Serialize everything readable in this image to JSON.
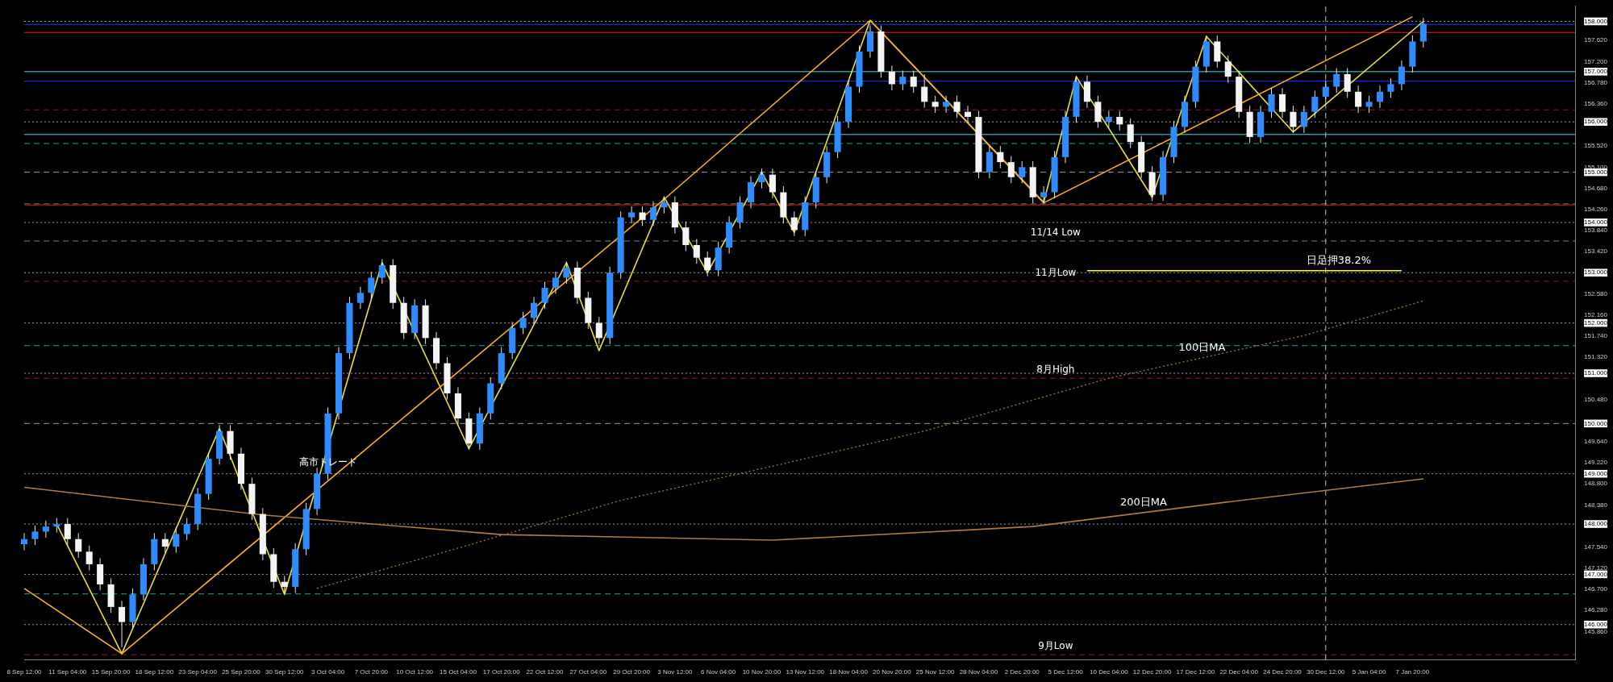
{
  "chart_data": {
    "type": "candlestick",
    "categories": [
      "8 Sep 12:00",
      null,
      null,
      null,
      "11 Sep 04:00",
      null,
      null,
      null,
      "15 Sep 20:00",
      null,
      null,
      null,
      "18 Sep 12:00",
      null,
      null,
      null,
      "23 Sep 04:00",
      null,
      null,
      null,
      "25 Sep 20:00",
      null,
      null,
      null,
      "30 Sep 12:00",
      null,
      null,
      null,
      "3 Oct 04:00",
      null,
      null,
      null,
      "7 Oct 20:00",
      null,
      null,
      null,
      "10 Oct 12:00",
      null,
      null,
      null,
      "15 Oct 04:00",
      null,
      null,
      null,
      "17 Oct 20:00",
      null,
      null,
      null,
      "22 Oct 12:00",
      null,
      null,
      null,
      "27 Oct 04:00",
      null,
      null,
      null,
      "29 Oct 20:00",
      null,
      null,
      null,
      "3 Nov 12:00",
      null,
      null,
      null,
      "6 Nov 04:00",
      null,
      null,
      null,
      "10 Nov 20:00",
      null,
      null,
      null,
      "13 Nov 12:00",
      null,
      null,
      null,
      "18 Nov 04:00",
      null,
      null,
      null,
      "20 Nov 20:00",
      null,
      null,
      null,
      "25 Nov 12:00",
      null,
      null,
      null,
      "28 Nov 04:00",
      null,
      null,
      null,
      "2 Dec 20:00",
      null,
      null,
      null,
      "5 Dec 12:00",
      null,
      null,
      null,
      "10 Dec 04:00",
      null,
      null,
      null,
      "12 Dec 20:00",
      null,
      null,
      null,
      "17 Dec 12:00",
      null,
      null,
      null,
      "22 Dec 04:00",
      null,
      null,
      null,
      "24 Dec 20:00",
      null,
      null,
      null,
      "30 Dec 12:00",
      null,
      null,
      null,
      "5 Jan 04:00",
      null,
      null,
      null,
      "7 Jan 20:00",
      null,
      null,
      null,
      null,
      null,
      null,
      null,
      null,
      null,
      null,
      null,
      null,
      null,
      null,
      null
    ],
    "ohlc": [
      [
        147.6,
        147.82,
        147.48,
        147.7
      ],
      [
        147.7,
        147.97,
        147.58,
        147.85
      ],
      [
        147.85,
        148.07,
        147.73,
        147.95
      ],
      [
        147.95,
        148.12,
        147.83,
        148.0
      ],
      [
        148.0,
        148.12,
        147.58,
        147.7
      ],
      [
        147.7,
        147.82,
        147.33,
        147.45
      ],
      [
        147.45,
        147.57,
        147.08,
        147.2
      ],
      [
        147.2,
        147.32,
        146.68,
        146.8
      ],
      [
        146.8,
        146.92,
        146.23,
        146.35
      ],
      [
        146.35,
        146.47,
        145.55,
        146.05
      ],
      [
        146.05,
        146.72,
        145.93,
        146.6
      ],
      [
        146.6,
        147.32,
        146.48,
        147.2
      ],
      [
        147.2,
        147.82,
        147.08,
        147.7
      ],
      [
        147.7,
        147.82,
        147.43,
        147.55
      ],
      [
        147.55,
        147.92,
        147.43,
        147.8
      ],
      [
        147.8,
        148.12,
        147.68,
        148.0
      ],
      [
        148.0,
        148.72,
        147.88,
        148.6
      ],
      [
        148.6,
        149.42,
        148.48,
        149.3
      ],
      [
        149.3,
        149.97,
        149.18,
        149.85
      ],
      [
        149.85,
        149.97,
        149.28,
        149.4
      ],
      [
        149.4,
        149.52,
        148.68,
        148.8
      ],
      [
        148.8,
        148.92,
        148.08,
        148.2
      ],
      [
        148.2,
        148.32,
        147.28,
        147.4
      ],
      [
        147.4,
        147.52,
        146.73,
        146.85
      ],
      [
        146.85,
        146.97,
        146.63,
        146.75
      ],
      [
        146.75,
        147.62,
        146.63,
        147.5
      ],
      [
        147.5,
        148.42,
        147.38,
        148.3
      ],
      [
        148.3,
        149.12,
        148.18,
        149.0
      ],
      [
        149.0,
        150.32,
        148.88,
        150.2
      ],
      [
        150.2,
        151.52,
        150.08,
        151.4
      ],
      [
        151.4,
        152.52,
        151.28,
        152.4
      ],
      [
        152.4,
        152.72,
        152.28,
        152.6
      ],
      [
        152.6,
        153.02,
        152.48,
        152.9
      ],
      [
        152.9,
        153.27,
        152.78,
        153.15
      ],
      [
        153.15,
        153.27,
        152.28,
        152.4
      ],
      [
        152.4,
        152.52,
        151.68,
        151.8
      ],
      [
        151.8,
        152.47,
        151.68,
        152.35
      ],
      [
        152.35,
        152.47,
        151.58,
        151.7
      ],
      [
        151.7,
        151.82,
        151.08,
        151.2
      ],
      [
        151.2,
        151.32,
        150.48,
        150.6
      ],
      [
        150.6,
        150.72,
        149.98,
        150.1
      ],
      [
        150.1,
        150.22,
        149.48,
        149.6
      ],
      [
        149.6,
        150.32,
        149.48,
        150.2
      ],
      [
        150.2,
        150.92,
        150.08,
        150.8
      ],
      [
        150.8,
        151.52,
        150.68,
        151.4
      ],
      [
        151.4,
        152.02,
        151.28,
        151.9
      ],
      [
        151.9,
        152.22,
        151.78,
        152.1
      ],
      [
        152.1,
        152.52,
        151.98,
        152.4
      ],
      [
        152.4,
        152.82,
        152.28,
        152.7
      ],
      [
        152.7,
        153.02,
        152.58,
        152.9
      ],
      [
        152.9,
        153.22,
        152.78,
        153.1
      ],
      [
        153.1,
        153.22,
        152.38,
        152.5
      ],
      [
        152.5,
        152.62,
        151.88,
        152.0
      ],
      [
        152.0,
        152.12,
        151.58,
        151.7
      ],
      [
        151.7,
        153.12,
        151.58,
        153.0
      ],
      [
        153.0,
        154.22,
        152.88,
        154.1
      ],
      [
        154.1,
        154.32,
        153.98,
        154.2
      ],
      [
        154.2,
        154.32,
        153.93,
        154.05
      ],
      [
        154.05,
        154.42,
        153.93,
        154.3
      ],
      [
        154.3,
        154.52,
        154.18,
        154.4
      ],
      [
        154.4,
        154.52,
        153.78,
        153.9
      ],
      [
        153.9,
        154.02,
        153.43,
        153.55
      ],
      [
        153.55,
        153.67,
        153.18,
        153.3
      ],
      [
        153.3,
        153.42,
        152.93,
        153.05
      ],
      [
        153.05,
        153.62,
        152.93,
        153.5
      ],
      [
        153.5,
        154.12,
        153.38,
        154.0
      ],
      [
        154.0,
        154.52,
        153.88,
        154.4
      ],
      [
        154.4,
        154.92,
        154.28,
        154.8
      ],
      [
        154.8,
        155.07,
        154.68,
        154.95
      ],
      [
        154.95,
        155.07,
        154.48,
        154.6
      ],
      [
        154.6,
        154.72,
        153.98,
        154.1
      ],
      [
        154.1,
        154.22,
        153.73,
        153.85
      ],
      [
        153.85,
        154.52,
        153.73,
        154.4
      ],
      [
        154.4,
        155.02,
        154.28,
        154.9
      ],
      [
        154.9,
        155.52,
        154.78,
        155.4
      ],
      [
        155.4,
        156.12,
        155.28,
        156.0
      ],
      [
        156.0,
        156.82,
        155.88,
        156.7
      ],
      [
        156.7,
        157.52,
        156.58,
        157.4
      ],
      [
        157.4,
        157.92,
        157.28,
        157.8
      ],
      [
        157.8,
        157.92,
        156.88,
        157.0
      ],
      [
        157.0,
        157.12,
        156.63,
        156.75
      ],
      [
        156.75,
        157.02,
        156.63,
        156.9
      ],
      [
        156.9,
        157.02,
        156.58,
        156.7
      ],
      [
        156.7,
        156.95,
        156.28,
        156.4
      ],
      [
        156.4,
        156.52,
        156.18,
        156.3
      ],
      [
        156.3,
        156.52,
        156.18,
        156.4
      ],
      [
        156.4,
        156.52,
        156.08,
        156.2
      ],
      [
        156.2,
        156.32,
        155.98,
        156.1
      ],
      [
        156.1,
        156.22,
        154.88,
        155.0
      ],
      [
        155.0,
        155.52,
        154.88,
        155.4
      ],
      [
        155.4,
        155.52,
        155.08,
        155.2
      ],
      [
        155.2,
        155.32,
        154.78,
        154.9
      ],
      [
        154.9,
        155.22,
        154.78,
        155.1
      ],
      [
        155.1,
        155.22,
        154.38,
        154.5
      ],
      [
        154.5,
        154.72,
        154.38,
        154.6
      ],
      [
        154.6,
        155.42,
        154.48,
        155.3
      ],
      [
        155.3,
        156.22,
        155.18,
        156.1
      ],
      [
        156.1,
        156.92,
        155.98,
        156.8
      ],
      [
        156.8,
        156.92,
        156.28,
        156.4
      ],
      [
        156.4,
        156.52,
        155.88,
        156.0
      ],
      [
        156.0,
        156.22,
        155.88,
        156.1
      ],
      [
        156.1,
        156.22,
        155.83,
        155.95
      ],
      [
        155.95,
        156.07,
        155.48,
        155.6
      ],
      [
        155.6,
        155.72,
        154.88,
        155.0
      ],
      [
        155.0,
        155.12,
        154.43,
        154.55
      ],
      [
        154.55,
        155.42,
        154.43,
        155.3
      ],
      [
        155.3,
        156.02,
        155.18,
        155.9
      ],
      [
        155.9,
        156.52,
        155.78,
        156.4
      ],
      [
        156.4,
        157.22,
        156.28,
        157.1
      ],
      [
        157.1,
        157.72,
        156.98,
        157.6
      ],
      [
        157.6,
        157.72,
        157.08,
        157.2
      ],
      [
        157.2,
        157.32,
        156.78,
        156.9
      ],
      [
        156.9,
        157.02,
        156.08,
        156.2
      ],
      [
        156.2,
        156.32,
        155.58,
        155.7
      ],
      [
        155.7,
        156.32,
        155.58,
        156.2
      ],
      [
        156.2,
        156.67,
        156.08,
        156.55
      ],
      [
        156.55,
        156.67,
        156.08,
        156.2
      ],
      [
        156.2,
        156.32,
        155.78,
        155.9
      ],
      [
        155.9,
        156.32,
        155.78,
        156.2
      ],
      [
        156.2,
        156.62,
        156.08,
        156.5
      ],
      [
        156.5,
        156.82,
        156.38,
        156.7
      ],
      [
        156.7,
        157.07,
        156.58,
        156.95
      ],
      [
        156.95,
        157.07,
        156.48,
        156.6
      ],
      [
        156.6,
        156.72,
        156.18,
        156.3
      ],
      [
        156.3,
        156.52,
        156.18,
        156.4
      ],
      [
        156.4,
        156.72,
        156.28,
        156.6
      ],
      [
        156.6,
        156.87,
        156.48,
        156.75
      ],
      [
        156.75,
        157.22,
        156.63,
        157.1
      ],
      [
        157.1,
        157.72,
        156.98,
        157.6
      ],
      [
        157.6,
        158.07,
        157.48,
        157.95
      ],
      null,
      null,
      null,
      null,
      null,
      null,
      null,
      null,
      null,
      null,
      null,
      null,
      null,
      null
    ],
    "series": [
      {
        "name": "100日MA",
        "type": "line",
        "color": "#a07840",
        "line_style": "dotted",
        "values": [
          null,
          null,
          null,
          null,
          null,
          null,
          null,
          null,
          null,
          null,
          null,
          null,
          null,
          null,
          null,
          null,
          null,
          null,
          null,
          null,
          null,
          null,
          null,
          null,
          null,
          null,
          null,
          146.72,
          null,
          null,
          null,
          null,
          null,
          null,
          null,
          null,
          null,
          null,
          null,
          null,
          147.52,
          null,
          null,
          null,
          null,
          null,
          null,
          null,
          null,
          null,
          null,
          null,
          null,
          null,
          null,
          148.47,
          null,
          null,
          null,
          null,
          null,
          null,
          null,
          null,
          null,
          null,
          null,
          null,
          null,
          null,
          149.2,
          null,
          null,
          null,
          null,
          null,
          null,
          null,
          null,
          null,
          null,
          null,
          null,
          149.85,
          null,
          null,
          null,
          null,
          null,
          null,
          null,
          null,
          null,
          null,
          null,
          null,
          null,
          null,
          null,
          null,
          150.9,
          null,
          null,
          null,
          null,
          null,
          null,
          null,
          null,
          null,
          null,
          null,
          null,
          null,
          null,
          null,
          null,
          null,
          151.75,
          null,
          null,
          null,
          null,
          null,
          null,
          null,
          null,
          null,
          null,
          152.44,
          null,
          null,
          null,
          null,
          null,
          null,
          null,
          null,
          null,
          null,
          null,
          null,
          null,
          null
        ]
      },
      {
        "name": "200日MA",
        "type": "line",
        "color": "#b07a40",
        "line_style": "solid",
        "values": [
          148.73,
          null,
          null,
          null,
          null,
          null,
          null,
          null,
          null,
          null,
          null,
          null,
          null,
          null,
          null,
          null,
          null,
          null,
          null,
          null,
          null,
          null,
          148.18,
          null,
          null,
          null,
          null,
          null,
          null,
          null,
          null,
          null,
          null,
          null,
          null,
          null,
          null,
          null,
          null,
          null,
          null,
          null,
          null,
          null,
          147.79,
          null,
          null,
          null,
          null,
          null,
          null,
          null,
          null,
          null,
          null,
          null,
          null,
          null,
          null,
          null,
          null,
          null,
          null,
          null,
          null,
          null,
          null,
          null,
          null,
          147.68,
          null,
          null,
          null,
          null,
          null,
          null,
          null,
          null,
          null,
          null,
          null,
          null,
          null,
          null,
          null,
          null,
          null,
          null,
          null,
          null,
          null,
          null,
          null,
          147.95,
          null,
          null,
          null,
          null,
          null,
          null,
          null,
          null,
          null,
          null,
          null,
          null,
          null,
          null,
          null,
          null,
          null,
          148.44,
          null,
          null,
          null,
          null,
          null,
          null,
          null,
          null,
          null,
          null,
          null,
          null,
          null,
          null,
          null,
          null,
          null,
          148.9,
          null,
          null,
          null,
          null,
          null,
          null,
          null,
          null,
          null,
          null,
          null,
          null,
          null,
          null
        ]
      },
      {
        "type": "line",
        "color": "#ffb020",
        "line_style": "solid",
        "values": [
          146.72,
          null,
          null,
          null,
          null,
          null,
          null,
          null,
          null,
          145.42,
          null,
          null,
          null,
          null,
          null,
          null,
          null,
          null,
          null,
          null,
          null,
          null,
          null,
          null,
          null,
          null,
          null,
          null,
          null,
          null,
          null,
          null,
          null,
          null,
          null,
          null,
          null,
          null,
          null,
          null,
          null,
          null,
          null,
          null,
          null,
          null,
          null,
          null,
          null,
          null,
          null,
          null,
          null,
          null,
          null,
          null,
          null,
          null,
          null,
          154.46,
          null,
          null,
          null,
          null,
          null,
          null,
          null,
          null,
          null,
          null,
          null,
          null,
          null,
          null,
          null,
          null,
          null,
          null,
          158.02,
          null,
          null,
          null,
          null,
          null,
          null,
          null,
          null,
          null,
          null,
          null,
          null,
          null,
          null,
          null,
          154.39,
          null,
          null,
          null,
          null,
          null,
          null,
          null,
          null,
          null,
          null,
          null,
          null,
          null,
          null,
          null,
          null,
          null,
          null,
          null,
          null,
          null,
          null,
          null,
          null,
          null,
          null,
          null,
          null,
          null,
          null,
          null,
          null,
          null,
          158.09,
          null,
          null,
          null,
          null,
          null,
          null,
          null,
          null,
          null,
          null,
          null,
          null,
          null,
          null,
          null
        ]
      },
      {
        "type": "line",
        "color": "#e8e040",
        "line_style": "solid",
        "values": [
          null,
          null,
          null,
          148.0,
          null,
          null,
          null,
          null,
          null,
          145.42,
          null,
          null,
          null,
          null,
          null,
          null,
          null,
          null,
          149.9,
          null,
          null,
          null,
          null,
          null,
          146.6,
          null,
          null,
          null,
          null,
          null,
          null,
          null,
          null,
          153.2,
          null,
          null,
          null,
          null,
          null,
          null,
          null,
          149.5,
          null,
          null,
          null,
          null,
          null,
          null,
          null,
          null,
          153.2,
          null,
          null,
          151.45,
          null,
          null,
          null,
          null,
          null,
          154.5,
          null,
          null,
          null,
          153.0,
          null,
          null,
          null,
          null,
          155.0,
          null,
          null,
          153.8,
          null,
          null,
          null,
          null,
          null,
          null,
          158.02,
          null,
          null,
          null,
          null,
          null,
          null,
          null,
          null,
          null,
          null,
          null,
          null,
          null,
          null,
          null,
          154.4,
          null,
          null,
          156.9,
          null,
          null,
          null,
          null,
          null,
          null,
          154.5,
          null,
          null,
          null,
          null,
          157.7,
          null,
          null,
          null,
          null,
          null,
          null,
          null,
          155.8,
          null,
          null,
          null,
          null,
          null,
          null,
          null,
          null,
          null,
          null,
          null,
          158.0,
          null,
          null,
          null,
          null,
          null,
          null,
          null,
          null,
          null,
          null,
          null,
          null,
          null,
          null
        ]
      },
      {
        "name": "日足押38.2%",
        "type": "line",
        "color": "#ffff00",
        "line_style": "solid",
        "values": [
          null,
          null,
          null,
          null,
          null,
          null,
          null,
          null,
          null,
          null,
          null,
          null,
          null,
          null,
          null,
          null,
          null,
          null,
          null,
          null,
          null,
          null,
          null,
          null,
          null,
          null,
          null,
          null,
          null,
          null,
          null,
          null,
          null,
          null,
          null,
          null,
          null,
          null,
          null,
          null,
          null,
          null,
          null,
          null,
          null,
          null,
          null,
          null,
          null,
          null,
          null,
          null,
          null,
          null,
          null,
          null,
          null,
          null,
          null,
          null,
          null,
          null,
          null,
          null,
          null,
          null,
          null,
          null,
          null,
          null,
          null,
          null,
          null,
          null,
          null,
          null,
          null,
          null,
          null,
          null,
          null,
          null,
          null,
          null,
          null,
          null,
          null,
          null,
          null,
          null,
          null,
          null,
          null,
          null,
          null,
          null,
          null,
          null,
          153.04,
          null,
          null,
          null,
          null,
          null,
          null,
          null,
          null,
          null,
          null,
          null,
          null,
          null,
          null,
          null,
          null,
          null,
          null,
          null,
          null,
          null,
          null,
          null,
          null,
          null,
          null,
          null,
          null,
          153.04,
          null,
          null,
          null,
          null,
          null,
          null,
          null,
          null,
          null,
          null,
          null,
          null,
          null,
          null,
          null,
          null
        ]
      }
    ],
    "ylim": [
      145.3,
      158.3
    ],
    "yticks": [
      {
        "value": 145.86,
        "label": "145.860"
      },
      {
        "value": 146,
        "label": "146.000"
      },
      {
        "value": 146.28,
        "label": "146.280"
      },
      {
        "value": 146.7,
        "label": "146.700"
      },
      {
        "value": 147,
        "label": "147.000"
      },
      {
        "value": 147.12,
        "label": "147.120"
      },
      {
        "value": 147.54,
        "label": "147.540"
      },
      {
        "value": 148,
        "label": "148.000"
      },
      {
        "value": 148.38,
        "label": "148.380"
      },
      {
        "value": 148.8,
        "label": "148.800"
      },
      {
        "value": 149,
        "label": "149.000"
      },
      {
        "value": 149.22,
        "label": "149.220"
      },
      {
        "value": 149.64,
        "label": "149.640"
      },
      {
        "value": 150,
        "label": "150.000"
      },
      {
        "value": 150.48,
        "label": "150.480"
      },
      {
        "value": 151,
        "label": "151.000"
      },
      {
        "value": 151.32,
        "label": "151.320"
      },
      {
        "value": 151.74,
        "label": "151.740"
      },
      {
        "value": 152,
        "label": "152.000"
      },
      {
        "value": 152.16,
        "label": "152.160"
      },
      {
        "value": 152.58,
        "label": "152.580"
      },
      {
        "value": 153,
        "label": "153.000"
      },
      {
        "value": 153.42,
        "label": "153.420"
      },
      {
        "value": 153.84,
        "label": "153.840"
      },
      {
        "value": 154,
        "label": "154.000"
      },
      {
        "value": 154.26,
        "label": "154.260"
      },
      {
        "value": 154.68,
        "label": "154.680"
      },
      {
        "value": 155,
        "label": "155.000"
      },
      {
        "value": 155.1,
        "label": "155.100"
      },
      {
        "value": 155.52,
        "label": "155.520"
      },
      {
        "value": 156,
        "label": "156.000"
      },
      {
        "value": 156.36,
        "label": "156.360"
      },
      {
        "value": 156.78,
        "label": "156.780"
      },
      {
        "value": 157,
        "label": "157.000"
      },
      {
        "value": 157.2,
        "label": "157.200"
      },
      {
        "value": 157.62,
        "label": "157.620"
      },
      {
        "value": 158,
        "label": "158.000"
      }
    ],
    "ref_lines": [
      {
        "axis": "y",
        "value": 146,
        "color": "#9a9a9a",
        "line_style": "dotted"
      },
      {
        "axis": "y",
        "value": 147,
        "color": "#9a9a9a",
        "line_style": "dotted"
      },
      {
        "axis": "y",
        "value": 148,
        "color": "#9a9a9a",
        "line_style": "dotted"
      },
      {
        "axis": "y",
        "value": 149,
        "color": "#9a9a9a",
        "line_style": "dotted"
      },
      {
        "axis": "y",
        "value": 150,
        "color": "#9a9a9a",
        "line_style": "dashed"
      },
      {
        "axis": "y",
        "value": 151,
        "color": "#9a9a9a",
        "line_style": "dotted"
      },
      {
        "axis": "y",
        "value": 152,
        "color": "#9a9a9a",
        "line_style": "dotted"
      },
      {
        "axis": "y",
        "value": 153,
        "color": "#9a9a9a",
        "line_style": "dotted"
      },
      {
        "axis": "y",
        "value": 154,
        "color": "#9a9a9a",
        "line_style": "dotted"
      },
      {
        "axis": "y",
        "value": 155,
        "color": "#9a9a9a",
        "line_style": "dashed"
      },
      {
        "axis": "y",
        "value": 156,
        "color": "#9a9a9a",
        "line_style": "dotted"
      },
      {
        "axis": "y",
        "value": 157,
        "color": "#40e0e0",
        "line_style": "solid"
      },
      {
        "axis": "y",
        "value": 158,
        "color": "#9a9a9a",
        "line_style": "dotted"
      },
      {
        "axis": "y",
        "value": 157.94,
        "color": "#2030ff",
        "line_style": "solid"
      },
      {
        "axis": "y",
        "value": 157.78,
        "color": "#ff1010",
        "line_style": "solid"
      },
      {
        "axis": "y",
        "value": 156.81,
        "color": "#2030ff",
        "line_style": "solid"
      },
      {
        "axis": "y",
        "value": 156.24,
        "color": "#8b1a2a",
        "line_style": "dashed"
      },
      {
        "axis": "y",
        "value": 155.75,
        "color": "#40e0e0",
        "line_style": "solid"
      },
      {
        "axis": "y",
        "value": 155.57,
        "color": "#2a9a8a",
        "line_style": "dashed"
      },
      {
        "axis": "y",
        "value": 154.37,
        "color": "#2a9a8a",
        "line_style": "dashed"
      },
      {
        "axis": "y",
        "value": 154.35,
        "color": "#ff1010",
        "line_style": "solid"
      },
      {
        "axis": "y",
        "value": 153.63,
        "color": "#8a8a40",
        "line_style": "dashed",
        "label": "11/14 Low"
      },
      {
        "axis": "y",
        "value": 152.83,
        "color": "#a01020",
        "line_style": "dashed",
        "label": "11月Low"
      },
      {
        "axis": "y",
        "value": 151.55,
        "color": "#2a9a8a",
        "line_style": "dashed"
      },
      {
        "axis": "y",
        "value": 150.9,
        "color": "#a01020",
        "line_style": "dashed",
        "label": "8月High"
      },
      {
        "axis": "y",
        "value": 146.61,
        "color": "#2a9a8a",
        "line_style": "dashed"
      },
      {
        "axis": "y",
        "value": 145.4,
        "color": "#a01020",
        "line_style": "dashed",
        "label": "9月Low"
      },
      {
        "axis": "x",
        "value": "30 Dec 12:00",
        "color": "#c0c0c0",
        "line_style": "dashed"
      }
    ],
    "annotations": [
      {
        "text": "高市トレード",
        "x": "3 Oct 04:00",
        "y": 149.12
      }
    ],
    "marker": "none",
    "legend": false,
    "grid": false
  }
}
